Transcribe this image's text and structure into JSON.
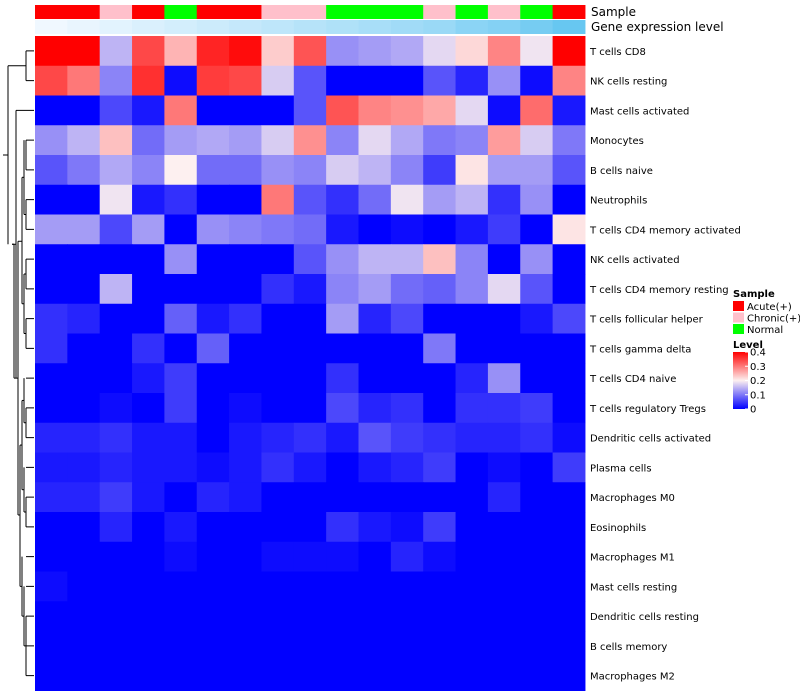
{
  "chart_data": {
    "type": "heatmap",
    "title": "",
    "annotations": {
      "sample_label": "Sample",
      "gene_label": "Gene expression level",
      "sample_groups": [
        "Acute(+)",
        "Acute(+)",
        "Chronic(+)",
        "Acute(+)",
        "Normal",
        "Acute(+)",
        "Acute(+)",
        "Chronic(+)",
        "Chronic(+)",
        "Normal",
        "Normal",
        "Normal",
        "Chronic(+)",
        "Normal",
        "Chronic(+)",
        "Normal",
        "Acute(+)"
      ],
      "gene_levels": [
        0.0,
        0.05,
        0.1,
        0.15,
        0.2,
        0.25,
        0.3,
        0.35,
        0.4,
        0.45,
        0.5,
        0.55,
        0.6,
        0.7,
        0.75,
        0.85,
        0.95
      ]
    },
    "rows": [
      "T cells CD8",
      "NK cells resting",
      "Mast cells activated",
      "Monocytes",
      "B cells naive",
      "Neutrophils",
      "T cells CD4 memory activated",
      "NK cells activated",
      "T cells CD4 memory resting",
      "T cells follicular helper",
      "T cells gamma delta",
      "T cells CD4 naive",
      "T cells regulatory  Tregs",
      "Dendritic cells activated",
      "Plasma cells",
      "Macrophages M0",
      "Eosinophils",
      "Macrophages M1",
      "Mast cells resting",
      "Dendritic cells resting",
      "B cells memory",
      "Macrophages M2"
    ],
    "values": [
      [
        0.4,
        0.4,
        0.15,
        0.34,
        0.25,
        0.37,
        0.39,
        0.23,
        0.33,
        0.12,
        0.13,
        0.14,
        0.18,
        0.22,
        0.29,
        0.19,
        0.4
      ],
      [
        0.34,
        0.3,
        0.11,
        0.36,
        0.01,
        0.35,
        0.34,
        0.17,
        0.07,
        0.0,
        0.0,
        0.0,
        0.07,
        0.03,
        0.12,
        0.01,
        0.29
      ],
      [
        0.0,
        0.0,
        0.06,
        0.02,
        0.3,
        0.0,
        0.0,
        0.0,
        0.07,
        0.33,
        0.29,
        0.28,
        0.26,
        0.18,
        0.01,
        0.31,
        0.02
      ],
      [
        0.12,
        0.15,
        0.24,
        0.09,
        0.13,
        0.14,
        0.13,
        0.17,
        0.28,
        0.11,
        0.18,
        0.14,
        0.1,
        0.11,
        0.27,
        0.17,
        0.1
      ],
      [
        0.07,
        0.1,
        0.14,
        0.11,
        0.2,
        0.09,
        0.09,
        0.12,
        0.11,
        0.17,
        0.15,
        0.11,
        0.05,
        0.21,
        0.13,
        0.13,
        0.07
      ],
      [
        0.0,
        0.0,
        0.19,
        0.02,
        0.04,
        0.0,
        0.0,
        0.3,
        0.07,
        0.04,
        0.09,
        0.19,
        0.13,
        0.15,
        0.04,
        0.12,
        0.0
      ],
      [
        0.13,
        0.13,
        0.06,
        0.13,
        0.0,
        0.12,
        0.11,
        0.1,
        0.09,
        0.02,
        0.0,
        0.01,
        0.0,
        0.02,
        0.05,
        0.0,
        0.21
      ],
      [
        0.0,
        0.0,
        0.0,
        0.0,
        0.12,
        0.0,
        0.0,
        0.0,
        0.07,
        0.12,
        0.15,
        0.15,
        0.24,
        0.11,
        0.0,
        0.12,
        0.0
      ],
      [
        0.0,
        0.0,
        0.15,
        0.0,
        0.0,
        0.0,
        0.0,
        0.04,
        0.02,
        0.11,
        0.13,
        0.09,
        0.08,
        0.11,
        0.18,
        0.07,
        0.0
      ],
      [
        0.04,
        0.03,
        0.0,
        0.0,
        0.08,
        0.02,
        0.04,
        0.0,
        0.0,
        0.13,
        0.03,
        0.06,
        0.0,
        0.0,
        0.0,
        0.02,
        0.06
      ],
      [
        0.04,
        0.0,
        0.0,
        0.04,
        0.0,
        0.08,
        0.0,
        0.0,
        0.0,
        0.0,
        0.0,
        0.0,
        0.1,
        0.0,
        0.0,
        0.0,
        0.0
      ],
      [
        0.0,
        0.0,
        0.0,
        0.02,
        0.05,
        0.0,
        0.0,
        0.0,
        0.0,
        0.04,
        0.0,
        0.0,
        0.0,
        0.03,
        0.12,
        0.0,
        0.0
      ],
      [
        0.0,
        0.0,
        0.01,
        0.0,
        0.05,
        0.0,
        0.01,
        0.0,
        0.0,
        0.06,
        0.03,
        0.04,
        0.0,
        0.04,
        0.04,
        0.05,
        0.0
      ],
      [
        0.03,
        0.03,
        0.04,
        0.02,
        0.02,
        0.0,
        0.02,
        0.03,
        0.04,
        0.02,
        0.07,
        0.05,
        0.04,
        0.03,
        0.03,
        0.04,
        0.01
      ],
      [
        0.02,
        0.02,
        0.03,
        0.02,
        0.02,
        0.01,
        0.02,
        0.04,
        0.02,
        0.0,
        0.02,
        0.03,
        0.05,
        0.0,
        0.01,
        0.0,
        0.05
      ],
      [
        0.03,
        0.03,
        0.05,
        0.02,
        0.0,
        0.03,
        0.02,
        0.0,
        0.0,
        0.0,
        0.0,
        0.0,
        0.0,
        0.0,
        0.03,
        0.0,
        0.0
      ],
      [
        0.0,
        0.0,
        0.03,
        0.0,
        0.02,
        0.0,
        0.0,
        0.0,
        0.0,
        0.04,
        0.02,
        0.01,
        0.05,
        0.0,
        0.0,
        0.0,
        0.0
      ],
      [
        0.0,
        0.0,
        0.0,
        0.0,
        0.01,
        0.0,
        0.0,
        0.01,
        0.01,
        0.01,
        0.0,
        0.03,
        0.01,
        0.0,
        0.0,
        0.0,
        0.0
      ],
      [
        0.01,
        0.0,
        0.0,
        0.0,
        0.0,
        0.0,
        0.0,
        0.0,
        0.0,
        0.0,
        0.0,
        0.0,
        0.0,
        0.0,
        0.0,
        0.0,
        0.0
      ],
      [
        0.0,
        0.0,
        0.0,
        0.0,
        0.0,
        0.0,
        0.0,
        0.0,
        0.0,
        0.0,
        0.0,
        0.0,
        0.0,
        0.0,
        0.0,
        0.0,
        0.0
      ],
      [
        0.0,
        0.0,
        0.0,
        0.0,
        0.0,
        0.0,
        0.0,
        0.0,
        0.0,
        0.0,
        0.0,
        0.0,
        0.0,
        0.0,
        0.0,
        0.0,
        0.0
      ],
      [
        0.0,
        0.0,
        0.0,
        0.0,
        0.0,
        0.0,
        0.0,
        0.0,
        0.0,
        0.0,
        0.0,
        0.0,
        0.0,
        0.0,
        0.0,
        0.0,
        0.0
      ]
    ],
    "scale": {
      "min": 0,
      "mid": 0.2,
      "max": 0.4,
      "low_color": "#0000ff",
      "mid_color": "#fdf0f0",
      "high_color": "#ff0000"
    },
    "legend": {
      "sample_title": "Sample",
      "sample_items": [
        {
          "label": "Acute(+)",
          "color": "#ff0000"
        },
        {
          "label": "Chronic(+)",
          "color": "#ffc0cb"
        },
        {
          "label": "Normal",
          "color": "#00ff00"
        }
      ],
      "level_title": "Level",
      "level_ticks": [
        "0.4",
        "0.3",
        "0.2",
        "0.1",
        "0"
      ],
      "level_tick_values": [
        0.4,
        0.3,
        0.2,
        0.1,
        0
      ]
    },
    "dendrogram": "hierarchical row clustering",
    "xlabel": "",
    "ylabel": ""
  }
}
